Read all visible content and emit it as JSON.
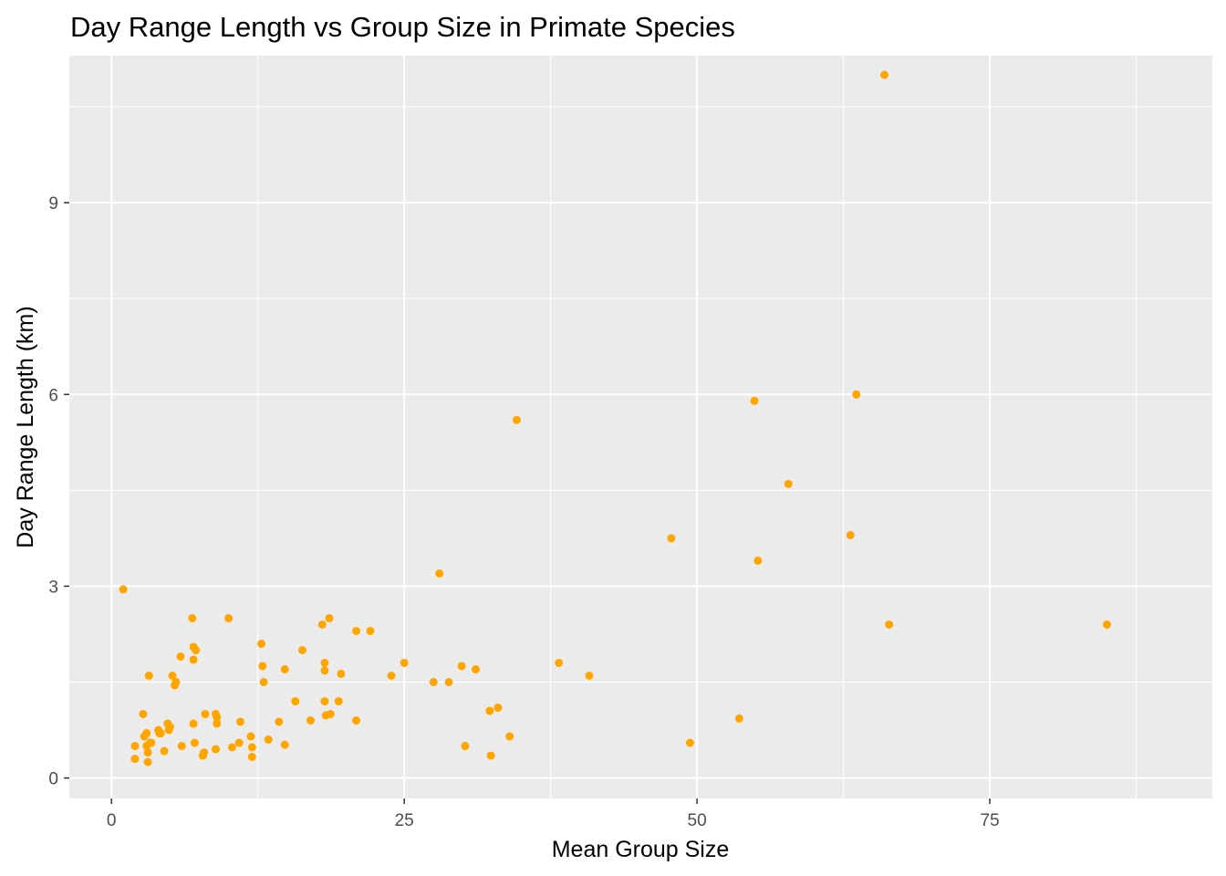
{
  "chart_data": {
    "type": "scatter",
    "title": "Day Range Length vs Group Size in Primate Species",
    "xlabel": "Mean Group Size",
    "ylabel": "Day Range Length (km)",
    "xlim": [
      -3.6,
      94
    ],
    "ylim": [
      -0.32,
      11.3
    ],
    "x_ticks": [
      0,
      25,
      50,
      75
    ],
    "x_tick_labels": [
      "0",
      "25",
      "50",
      "75"
    ],
    "y_ticks": [
      0,
      3,
      6,
      9
    ],
    "y_tick_labels": [
      "0",
      "3",
      "6",
      "9"
    ],
    "grid": true,
    "panel_background": "#ebebeb",
    "grid_color": "#ffffff",
    "point_color": "#ffa500",
    "series": [
      {
        "x": [
          1.0,
          2.0,
          2.0,
          2.7,
          2.8,
          3.0,
          3.0,
          3.1,
          3.1,
          3.2,
          3.3,
          3.4,
          4.0,
          4.1,
          4.2,
          4.5,
          4.8,
          4.9,
          5.0,
          5.2,
          5.4,
          5.5,
          5.9,
          6.0,
          6.9,
          7.0,
          7.0,
          7.0,
          7.1,
          7.2,
          7.8,
          7.9,
          8.0,
          8.9,
          8.9,
          9.0,
          9.0,
          10.0,
          10.3,
          10.9,
          11.0,
          11.9,
          12.0,
          12.0,
          12.8,
          12.9,
          13.0,
          13.4,
          14.3,
          14.8,
          14.8,
          15.7,
          16.3,
          17.0,
          18.0,
          18.2,
          18.2,
          18.2,
          18.3,
          18.6,
          18.7,
          19.4,
          19.6,
          20.9,
          20.9,
          22.1,
          23.9,
          25.0,
          27.5,
          28.0,
          28.8,
          29.9,
          30.2,
          31.1,
          32.3,
          32.4,
          33.0,
          34.0,
          34.6,
          38.2,
          40.8,
          47.8,
          49.4,
          53.6,
          54.9,
          55.2,
          57.8,
          63.1,
          63.6,
          66.0,
          66.4,
          85.0
        ],
        "y": [
          2.95,
          0.5,
          0.3,
          1.0,
          0.65,
          0.7,
          0.5,
          0.4,
          0.25,
          1.6,
          0.55,
          0.55,
          0.75,
          0.7,
          0.7,
          0.42,
          0.85,
          0.75,
          0.8,
          1.6,
          1.45,
          1.5,
          1.9,
          0.5,
          2.5,
          2.05,
          1.85,
          0.85,
          0.55,
          2.0,
          0.35,
          0.4,
          1.0,
          1.0,
          0.45,
          0.95,
          0.85,
          2.5,
          0.48,
          0.55,
          0.88,
          0.65,
          0.48,
          0.33,
          2.1,
          1.75,
          1.5,
          0.6,
          0.88,
          1.7,
          0.52,
          1.2,
          2.0,
          0.9,
          2.4,
          1.8,
          1.68,
          1.2,
          0.98,
          2.5,
          1.0,
          1.2,
          1.63,
          2.3,
          0.9,
          2.3,
          1.6,
          1.8,
          1.5,
          3.2,
          1.5,
          1.75,
          0.5,
          1.7,
          1.05,
          0.35,
          1.1,
          0.65,
          5.6,
          1.8,
          1.6,
          3.75,
          0.55,
          0.93,
          5.9,
          3.4,
          4.6,
          3.8,
          6.0,
          11.0,
          2.4,
          2.4
        ]
      }
    ]
  }
}
